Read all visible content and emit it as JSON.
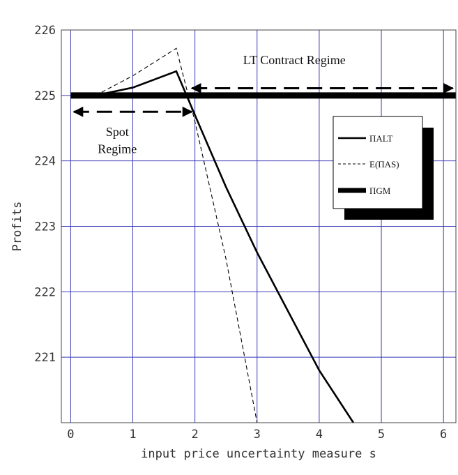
{
  "chart_data": {
    "type": "line",
    "xlabel": "input price uncertainty measure s",
    "ylabel": "Profits",
    "xlim": [
      -0.15,
      6.2
    ],
    "ylim": [
      220.0,
      226.0
    ],
    "x_ticks": [
      0,
      1,
      2,
      3,
      4,
      5,
      6
    ],
    "y_ticks": [
      221,
      222,
      223,
      224,
      225,
      226
    ],
    "grid": true,
    "series": [
      {
        "name": "ΠALT",
        "style": "solid",
        "color": "#000000",
        "x": [
          0.4,
          1.0,
          1.7,
          2.0,
          2.5,
          3.0,
          3.5,
          4.0,
          4.55
        ],
        "y": [
          225.0,
          225.12,
          225.37,
          224.7,
          223.6,
          222.6,
          221.7,
          220.8,
          220.0
        ]
      },
      {
        "name": "E(ΠAS)",
        "style": "dashed",
        "color": "#000000",
        "x": [
          0.4,
          1.0,
          1.7,
          2.0,
          2.5,
          3.0
        ],
        "y": [
          225.0,
          225.3,
          225.72,
          224.6,
          222.5,
          220.0
        ]
      },
      {
        "name": "ΠGM",
        "style": "thick",
        "color": "#000000",
        "x": [
          0,
          6.2
        ],
        "y": [
          225.0,
          225.0
        ]
      }
    ],
    "annotations": [
      {
        "text": "LT Contract Regime",
        "x": 3.6,
        "y": 225.48
      },
      {
        "text": "Spot",
        "x": 0.75,
        "y": 224.38
      },
      {
        "text": "Regime",
        "x": 0.75,
        "y": 224.12
      }
    ],
    "arrows": [
      {
        "from": [
          0.05,
          224.75
        ],
        "to": [
          1.95,
          224.75
        ]
      },
      {
        "from": [
          1.95,
          225.11
        ],
        "to": [
          6.15,
          225.11
        ]
      }
    ],
    "legend": {
      "placement": "right",
      "entries": [
        "ΠALT",
        "E(ΠAS)",
        "ΠGM"
      ]
    }
  }
}
